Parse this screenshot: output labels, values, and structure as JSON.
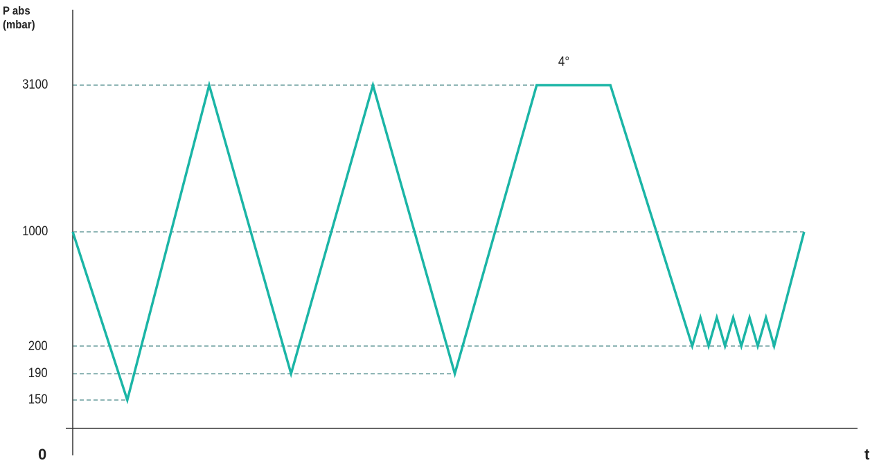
{
  "chart_data": {
    "type": "line",
    "ylabel": [
      "P abs",
      "(mbar)"
    ],
    "xlabel": "t",
    "origin_label": "0",
    "y_ticks": [
      {
        "label": "3100",
        "value": 3100
      },
      {
        "label": "1000",
        "value": 1000
      },
      {
        "label": "200",
        "value": 200
      },
      {
        "label": "190",
        "value": 190
      },
      {
        "label": "150",
        "value": 150
      }
    ],
    "annotation": "4°",
    "series": [
      {
        "color": "#1bb5a6",
        "points": [
          {
            "t": 0,
            "y": 1000
          },
          {
            "t": 1,
            "y": 150
          },
          {
            "t": 2.5,
            "y": 3100
          },
          {
            "t": 4,
            "y": 190
          },
          {
            "t": 5.5,
            "y": 3100
          },
          {
            "t": 7,
            "y": 190
          },
          {
            "t": 8.5,
            "y": 3100
          },
          {
            "t": 9.85,
            "y": 3100
          },
          {
            "t": 11.35,
            "y": 200
          },
          {
            "t": 11.5,
            "y": 400
          },
          {
            "t": 11.65,
            "y": 200
          },
          {
            "t": 11.8,
            "y": 400
          },
          {
            "t": 11.95,
            "y": 200
          },
          {
            "t": 12.1,
            "y": 400
          },
          {
            "t": 12.25,
            "y": 200
          },
          {
            "t": 12.4,
            "y": 400
          },
          {
            "t": 12.55,
            "y": 200
          },
          {
            "t": 12.7,
            "y": 400
          },
          {
            "t": 12.85,
            "y": 200
          },
          {
            "t": 13.4,
            "y": 1000
          }
        ]
      }
    ],
    "gridline_color": "#1e6b6b",
    "axis_color": "#333333"
  }
}
